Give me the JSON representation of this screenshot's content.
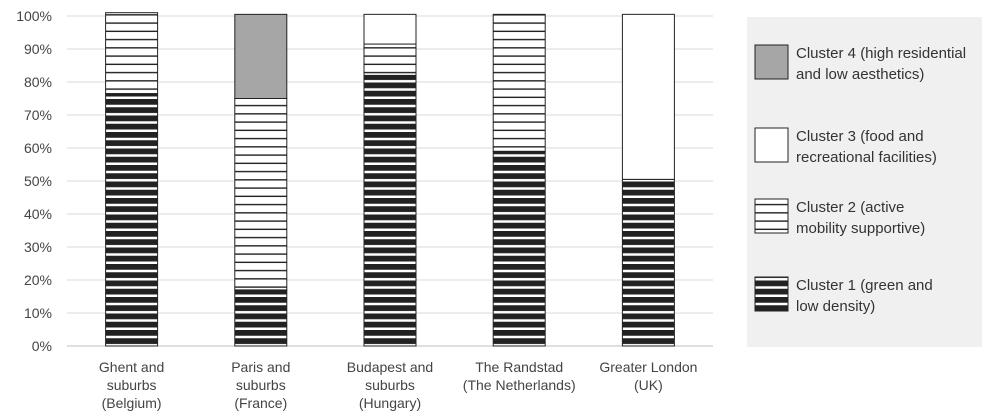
{
  "chart_data": {
    "type": "bar",
    "stacked": true,
    "percent": true,
    "title": "",
    "xlabel": "",
    "ylabel": "",
    "ylim": [
      0,
      100
    ],
    "yticks": [
      "0%",
      "10%",
      "20%",
      "30%",
      "40%",
      "50%",
      "60%",
      "70%",
      "80%",
      "90%",
      "100%"
    ],
    "grid": true,
    "legend_position": "right",
    "categories": [
      [
        "Ghent and",
        "suburbs",
        "(Belgium)"
      ],
      [
        "Paris and",
        "suburbs",
        "(France)"
      ],
      [
        "Budapest and",
        "suburbs",
        "(Hungary)"
      ],
      [
        "The Randstad",
        "(The Netherlands)"
      ],
      [
        "Greater London",
        "(UK)"
      ]
    ],
    "series": [
      {
        "name": [
          "Cluster 1 (green and",
          "low density)"
        ],
        "pattern": "black-stripes",
        "values": [
          76.5,
          17,
          82,
          59,
          50.5
        ]
      },
      {
        "name": [
          "Cluster 2 (active",
          "mobility supportive)"
        ],
        "pattern": "white-stripes",
        "values": [
          24.5,
          58,
          9.5,
          41.5,
          0
        ]
      },
      {
        "name": [
          "Cluster 3 (food and",
          "recreational facilities)"
        ],
        "pattern": "white",
        "values": [
          0,
          0,
          9,
          0,
          50
        ]
      },
      {
        "name": [
          "Cluster 4 (high residential",
          "and low aesthetics)"
        ],
        "pattern": "gray",
        "values": [
          0,
          25.5,
          0,
          0,
          0
        ]
      }
    ],
    "colors": {
      "black": "#222222",
      "white": "#ffffff",
      "gray": "#a6a6a6",
      "legend_bg": "#f0f0f0",
      "grid": "#d9d9d9"
    }
  }
}
